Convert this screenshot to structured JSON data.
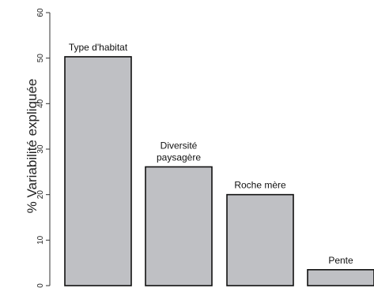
{
  "chart_data": {
    "type": "bar",
    "categories": [
      "Type d'habitat",
      "Diversité paysagère",
      "Roche mère",
      "Pente"
    ],
    "category_label_lines": [
      [
        "Type d'habitat"
      ],
      [
        "Diversité",
        "paysagère"
      ],
      [
        "Roche mère"
      ],
      [
        "Pente"
      ]
    ],
    "values": [
      50.3,
      26.1,
      20.0,
      3.5
    ],
    "ylabel": "% Variabilité expliquée",
    "xlabel": "",
    "title": "",
    "ylim": [
      0,
      60
    ],
    "yticks": [
      "0",
      "10",
      "20",
      "30",
      "40",
      "50",
      "60"
    ],
    "grid": false,
    "colors": {
      "bar_fill": "#bfc0c4",
      "bar_stroke": "#111111",
      "axis": "#333333"
    }
  }
}
